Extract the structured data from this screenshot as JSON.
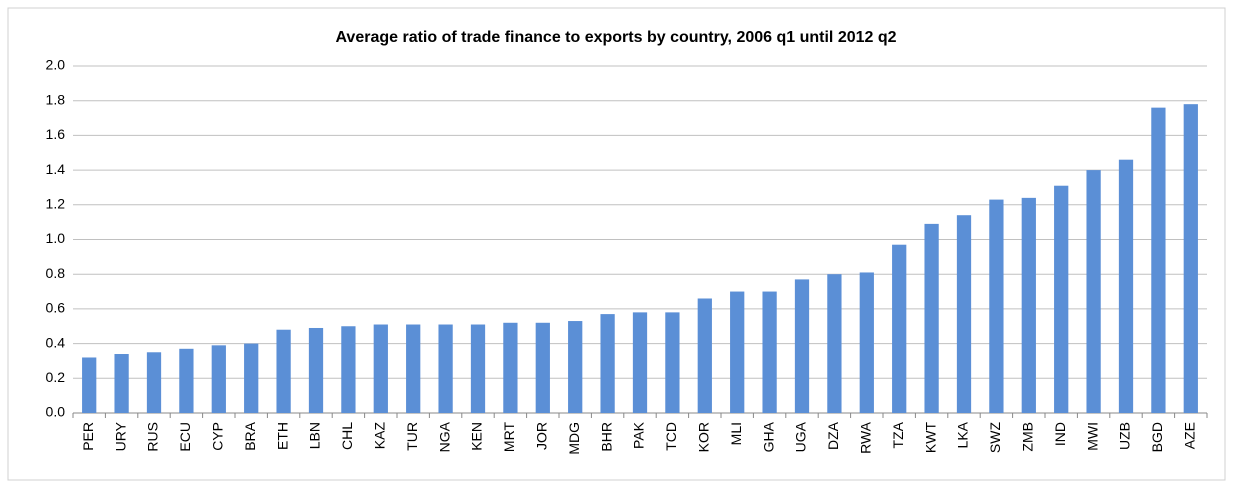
{
  "chart_data": {
    "type": "bar",
    "title": "Average ratio of trade finance  to exports by country, 2006 q1 until 2012 q2",
    "categories": [
      "PER",
      "URY",
      "RUS",
      "ECU",
      "CYP",
      "BRA",
      "ETH",
      "LBN",
      "CHL",
      "KAZ",
      "TUR",
      "NGA",
      "KEN",
      "MRT",
      "JOR",
      "MDG",
      "BHR",
      "PAK",
      "TCD",
      "KOR",
      "MLI",
      "GHA",
      "UGA",
      "DZA",
      "RWA",
      "TZA",
      "KWT",
      "LKA",
      "SWZ",
      "ZMB",
      "IND",
      "MWI",
      "UZB",
      "BGD",
      "AZE"
    ],
    "values": [
      0.32,
      0.34,
      0.35,
      0.37,
      0.39,
      0.4,
      0.48,
      0.49,
      0.5,
      0.51,
      0.51,
      0.51,
      0.51,
      0.52,
      0.52,
      0.53,
      0.57,
      0.58,
      0.58,
      0.66,
      0.7,
      0.7,
      0.77,
      0.8,
      0.81,
      0.97,
      1.09,
      1.14,
      1.23,
      1.24,
      1.31,
      1.4,
      1.46,
      1.76,
      1.78
    ],
    "color": "#5b8fd6",
    "ylim": [
      0,
      2
    ],
    "yticks": [
      {
        "value": 0,
        "label": "0.0"
      },
      0.2,
      0.4,
      0.6,
      0.8,
      {
        "value": 1,
        "label": "1.0"
      },
      1.2,
      1.4,
      1.6,
      1.8,
      {
        "value": 2,
        "label": "2.0"
      }
    ],
    "grid": true
  }
}
